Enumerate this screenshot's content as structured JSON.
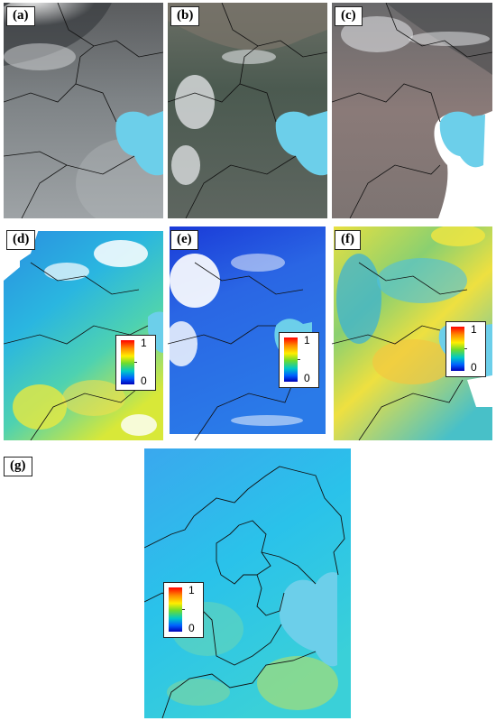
{
  "figure": {
    "panels": [
      {
        "id": "a",
        "label": "(a)",
        "type": "true-color",
        "dominant_colors": [
          "#6f7376",
          "#9a9ea2",
          "#e6e8ea"
        ]
      },
      {
        "id": "b",
        "label": "(b)",
        "type": "true-color",
        "dominant_colors": [
          "#4d5a4f",
          "#6a6e64",
          "#eef0f2"
        ]
      },
      {
        "id": "c",
        "label": "(c)",
        "type": "true-color",
        "dominant_colors": [
          "#7a6e6a",
          "#9d9397",
          "#dfe2e6"
        ]
      },
      {
        "id": "d",
        "label": "(d)",
        "type": "index-map",
        "dominant_colors": [
          "#2aa6e0",
          "#34c8c0",
          "#c8e83c",
          "#ffffff"
        ]
      },
      {
        "id": "e",
        "label": "(e)",
        "type": "index-map",
        "dominant_colors": [
          "#1e4ee0",
          "#2a7ae8",
          "#ffffff"
        ]
      },
      {
        "id": "f",
        "label": "(f)",
        "type": "index-map",
        "dominant_colors": [
          "#f0e840",
          "#7ad27c",
          "#2ab0e0"
        ]
      },
      {
        "id": "g",
        "label": "(g)",
        "type": "index-map",
        "dominant_colors": [
          "#36b6ee",
          "#22c8e6",
          "#b8e066"
        ]
      }
    ],
    "colorbar": {
      "max_label": "1",
      "min_label": "0",
      "gradient": [
        "#ff0000",
        "#ff8a00",
        "#ffee00",
        "#6edc2c",
        "#00c8c8",
        "#0060ff",
        "#0000b8"
      ]
    },
    "sea_color": "#6ccfea",
    "boundary_color": "#111111"
  }
}
